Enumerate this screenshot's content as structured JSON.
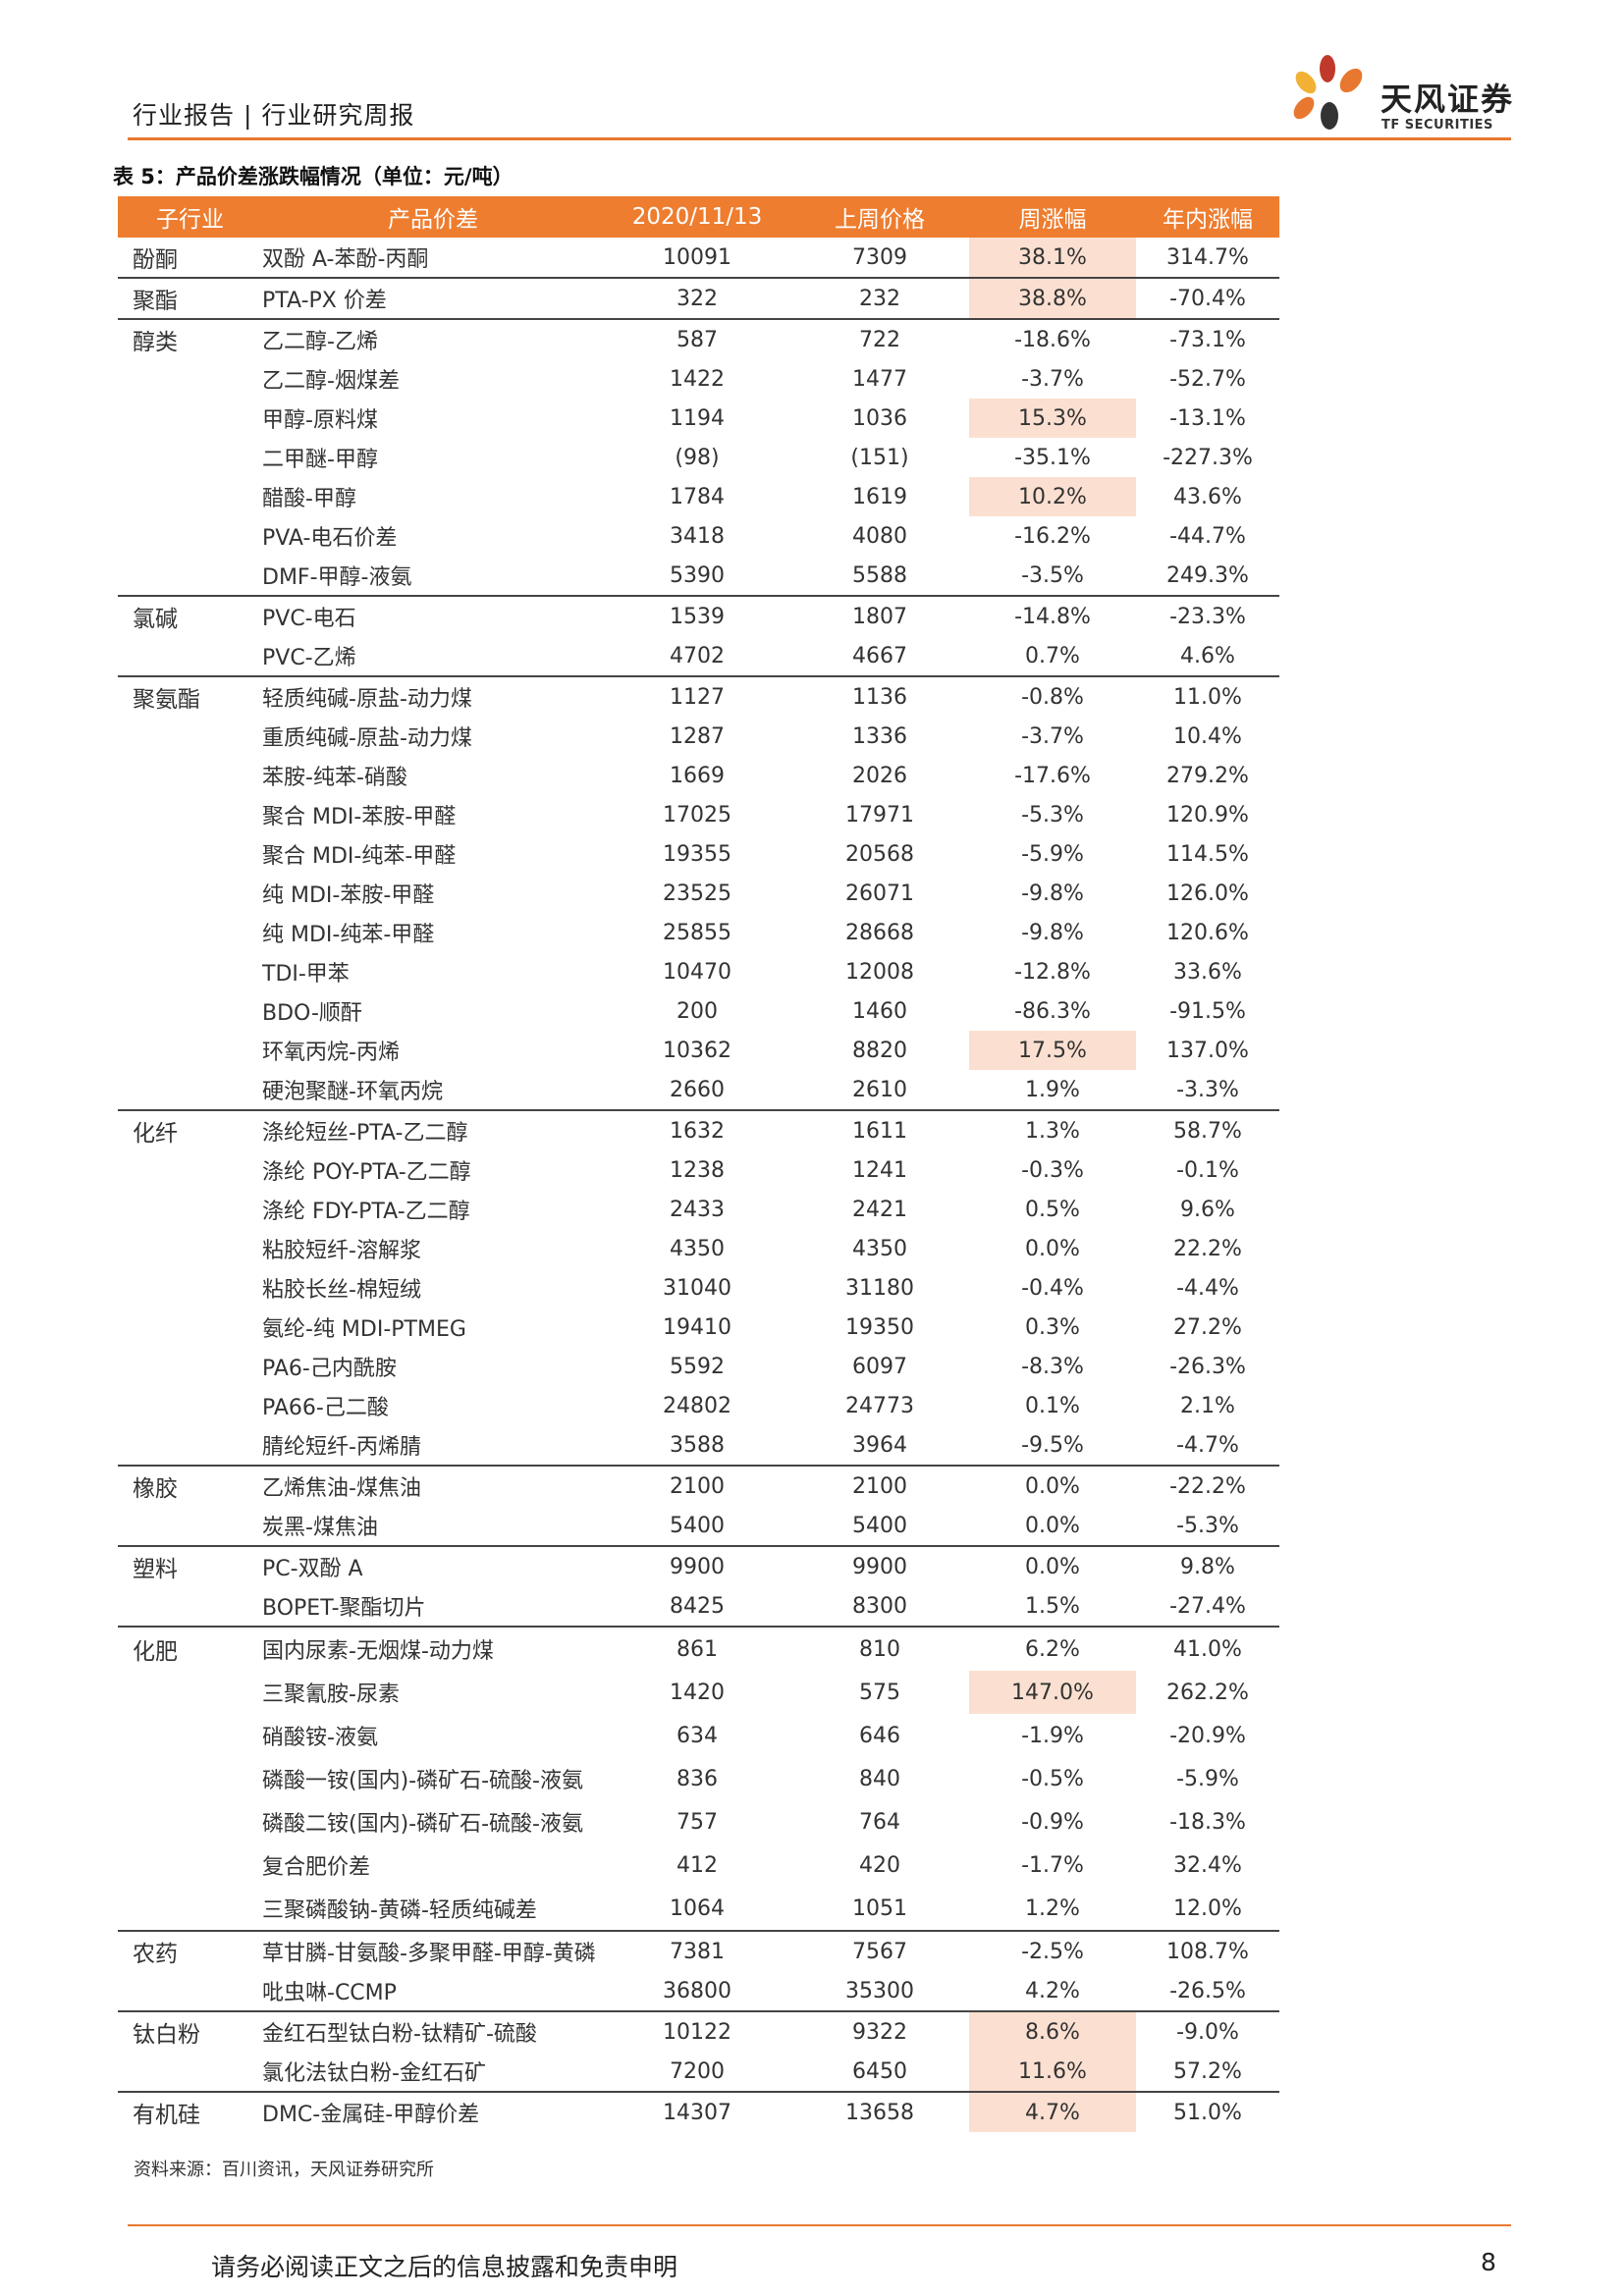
{
  "header": {
    "left": "行业报告 | 行业研究周报"
  },
  "logo": {
    "cn": "天风证券",
    "en": "TF SECURITIES",
    "colors": [
      "#e8782f",
      "#c0392b",
      "#f2b134",
      "#333333"
    ]
  },
  "table": {
    "title": "表 5：产品价差涨跌幅情况（单位：元/吨）",
    "columns": [
      "子行业",
      "产品价差",
      "2020/11/13",
      "上周价格",
      "周涨幅",
      "年内涨幅"
    ],
    "highlight_color": "#fbe0d1",
    "header_color": "#ee7d2f",
    "groups": [
      {
        "name": "酚酮",
        "rows": [
          {
            "name": "双酚 A-苯酚-丙酮",
            "cur": "10091",
            "prev": "7309",
            "wk": "38.1%",
            "yr": "314.7%",
            "hl": true
          }
        ]
      },
      {
        "name": "聚酯",
        "rows": [
          {
            "name": "PTA-PX 价差",
            "cur": "322",
            "prev": "232",
            "wk": "38.8%",
            "yr": "-70.4%",
            "hl": true
          }
        ]
      },
      {
        "name": "醇类",
        "rows": [
          {
            "name": "乙二醇-乙烯",
            "cur": "587",
            "prev": "722",
            "wk": "-18.6%",
            "yr": "-73.1%"
          },
          {
            "name": "乙二醇-烟煤差",
            "cur": "1422",
            "prev": "1477",
            "wk": "-3.7%",
            "yr": "-52.7%"
          },
          {
            "name": "甲醇-原料煤",
            "cur": "1194",
            "prev": "1036",
            "wk": "15.3%",
            "yr": "-13.1%",
            "hl": true
          },
          {
            "name": "二甲醚-甲醇",
            "cur": "(98)",
            "prev": "(151)",
            "wk": "-35.1%",
            "yr": "-227.3%"
          },
          {
            "name": "醋酸-甲醇",
            "cur": "1784",
            "prev": "1619",
            "wk": "10.2%",
            "yr": "43.6%",
            "hl": true
          },
          {
            "name": "PVA-电石价差",
            "cur": "3418",
            "prev": "4080",
            "wk": "-16.2%",
            "yr": "-44.7%"
          },
          {
            "name": "DMF-甲醇-液氨",
            "cur": "5390",
            "prev": "5588",
            "wk": "-3.5%",
            "yr": "249.3%"
          }
        ]
      },
      {
        "name": "氯碱",
        "rows": [
          {
            "name": "PVC-电石",
            "cur": "1539",
            "prev": "1807",
            "wk": "-14.8%",
            "yr": "-23.3%"
          },
          {
            "name": "PVC-乙烯",
            "cur": "4702",
            "prev": "4667",
            "wk": "0.7%",
            "yr": "4.6%"
          }
        ]
      },
      {
        "name": "聚氨酯",
        "rows": [
          {
            "name": "轻质纯碱-原盐-动力煤",
            "cur": "1127",
            "prev": "1136",
            "wk": "-0.8%",
            "yr": "11.0%"
          },
          {
            "name": "重质纯碱-原盐-动力煤",
            "cur": "1287",
            "prev": "1336",
            "wk": "-3.7%",
            "yr": "10.4%"
          },
          {
            "name": "苯胺-纯苯-硝酸",
            "cur": "1669",
            "prev": "2026",
            "wk": "-17.6%",
            "yr": "279.2%"
          },
          {
            "name": "聚合 MDI-苯胺-甲醛",
            "cur": "17025",
            "prev": "17971",
            "wk": "-5.3%",
            "yr": "120.9%"
          },
          {
            "name": "聚合 MDI-纯苯-甲醛",
            "cur": "19355",
            "prev": "20568",
            "wk": "-5.9%",
            "yr": "114.5%"
          },
          {
            "name": "纯 MDI-苯胺-甲醛",
            "cur": "23525",
            "prev": "26071",
            "wk": "-9.8%",
            "yr": "126.0%"
          },
          {
            "name": "纯 MDI-纯苯-甲醛",
            "cur": "25855",
            "prev": "28668",
            "wk": "-9.8%",
            "yr": "120.6%"
          },
          {
            "name": "TDI-甲苯",
            "cur": "10470",
            "prev": "12008",
            "wk": "-12.8%",
            "yr": "33.6%"
          },
          {
            "name": "BDO-顺酐",
            "cur": "200",
            "prev": "1460",
            "wk": "-86.3%",
            "yr": "-91.5%"
          },
          {
            "name": "环氧丙烷-丙烯",
            "cur": "10362",
            "prev": "8820",
            "wk": "17.5%",
            "yr": "137.0%",
            "hl": true
          },
          {
            "name": "硬泡聚醚-环氧丙烷",
            "cur": "2660",
            "prev": "2610",
            "wk": "1.9%",
            "yr": "-3.3%"
          }
        ]
      },
      {
        "name": "化纤",
        "rows": [
          {
            "name": "涤纶短丝-PTA-乙二醇",
            "cur": "1632",
            "prev": "1611",
            "wk": "1.3%",
            "yr": "58.7%"
          },
          {
            "name": "涤纶 POY-PTA-乙二醇",
            "cur": "1238",
            "prev": "1241",
            "wk": "-0.3%",
            "yr": "-0.1%"
          },
          {
            "name": "涤纶 FDY-PTA-乙二醇",
            "cur": "2433",
            "prev": "2421",
            "wk": "0.5%",
            "yr": "9.6%"
          },
          {
            "name": "粘胶短纤-溶解浆",
            "cur": "4350",
            "prev": "4350",
            "wk": "0.0%",
            "yr": "22.2%"
          },
          {
            "name": "粘胶长丝-棉短绒",
            "cur": "31040",
            "prev": "31180",
            "wk": "-0.4%",
            "yr": "-4.4%"
          },
          {
            "name": "氨纶-纯 MDI-PTMEG",
            "cur": "19410",
            "prev": "19350",
            "wk": "0.3%",
            "yr": "27.2%"
          },
          {
            "name": "PA6-己内酰胺",
            "cur": "5592",
            "prev": "6097",
            "wk": "-8.3%",
            "yr": "-26.3%"
          },
          {
            "name": "PA66-己二酸",
            "cur": "24802",
            "prev": "24773",
            "wk": "0.1%",
            "yr": "2.1%"
          },
          {
            "name": "腈纶短纤-丙烯腈",
            "cur": "3588",
            "prev": "3964",
            "wk": "-9.5%",
            "yr": "-4.7%"
          }
        ]
      },
      {
        "name": "橡胶",
        "rows": [
          {
            "name": "乙烯焦油-煤焦油",
            "cur": "2100",
            "prev": "2100",
            "wk": "0.0%",
            "yr": "-22.2%"
          },
          {
            "name": "炭黑-煤焦油",
            "cur": "5400",
            "prev": "5400",
            "wk": "0.0%",
            "yr": "-5.3%"
          }
        ]
      },
      {
        "name": "塑料",
        "rows": [
          {
            "name": "PC-双酚 A",
            "cur": "9900",
            "prev": "9900",
            "wk": "0.0%",
            "yr": "9.8%"
          },
          {
            "name": "BOPET-聚酯切片",
            "cur": "8425",
            "prev": "8300",
            "wk": "1.5%",
            "yr": "-27.4%"
          }
        ]
      },
      {
        "name": "化肥",
        "tall": true,
        "rows": [
          {
            "name": "国内尿素-无烟煤-动力煤",
            "cur": "861",
            "prev": "810",
            "wk": "6.2%",
            "yr": "41.0%"
          },
          {
            "name": "三聚氰胺-尿素",
            "cur": "1420",
            "prev": "575",
            "wk": "147.0%",
            "yr": "262.2%",
            "hl": true
          },
          {
            "name": "硝酸铵-液氨",
            "cur": "634",
            "prev": "646",
            "wk": "-1.9%",
            "yr": "-20.9%"
          },
          {
            "name": "磷酸一铵(国内)-磷矿石-硫酸-液氨",
            "cur": "836",
            "prev": "840",
            "wk": "-0.5%",
            "yr": "-5.9%"
          },
          {
            "name": "磷酸二铵(国内)-磷矿石-硫酸-液氨",
            "cur": "757",
            "prev": "764",
            "wk": "-0.9%",
            "yr": "-18.3%"
          },
          {
            "name": "复合肥价差",
            "cur": "412",
            "prev": "420",
            "wk": "-1.7%",
            "yr": "32.4%"
          },
          {
            "name": "三聚磷酸钠-黄磷-轻质纯碱差",
            "cur": "1064",
            "prev": "1051",
            "wk": "1.2%",
            "yr": "12.0%"
          }
        ]
      },
      {
        "name": "农药",
        "rows": [
          {
            "name": "草甘膦-甘氨酸-多聚甲醛-甲醇-黄磷",
            "cur": "7381",
            "prev": "7567",
            "wk": "-2.5%",
            "yr": "108.7%"
          },
          {
            "name": "吡虫啉-CCMP",
            "cur": "36800",
            "prev": "35300",
            "wk": "4.2%",
            "yr": "-26.5%"
          }
        ]
      },
      {
        "name": "钛白粉",
        "rows": [
          {
            "name": "金红石型钛白粉-钛精矿-硫酸",
            "cur": "10122",
            "prev": "9322",
            "wk": "8.6%",
            "yr": "-9.0%",
            "hl": true
          },
          {
            "name": "氯化法钛白粉-金红石矿",
            "cur": "7200",
            "prev": "6450",
            "wk": "11.6%",
            "yr": "57.2%",
            "hl": true
          }
        ]
      },
      {
        "name": "有机硅",
        "rows": [
          {
            "name": "DMC-金属硅-甲醇价差",
            "cur": "14307",
            "prev": "13658",
            "wk": "4.7%",
            "yr": "51.0%",
            "hl": true
          }
        ]
      }
    ]
  },
  "source": "资料来源：百川资讯，天风证券研究所",
  "footer": {
    "text": "请务必阅读正文之后的信息披露和免责申明",
    "page": "8"
  }
}
